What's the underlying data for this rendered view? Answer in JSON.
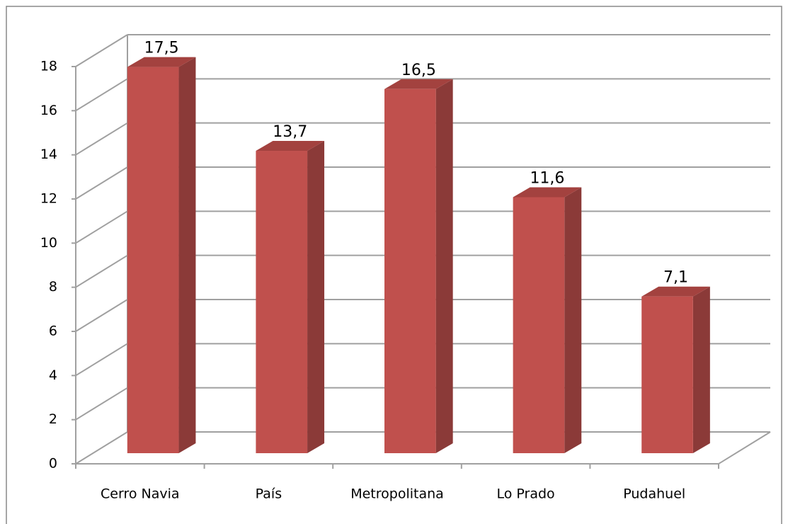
{
  "chart_data": {
    "type": "bar3d",
    "categories": [
      "Cerro Navia",
      "País",
      "Metropolitana",
      "Lo Prado",
      "Pudahuel"
    ],
    "values": [
      17.5,
      13.7,
      16.5,
      11.6,
      7.1
    ],
    "value_labels": [
      "17,5",
      "13,7",
      "16,5",
      "11,6",
      "7,1"
    ],
    "color": "#c0504d",
    "ylim": [
      0,
      18
    ],
    "yticks": [
      0,
      2,
      4,
      6,
      8,
      10,
      12,
      14,
      16,
      18
    ],
    "grid": true
  }
}
